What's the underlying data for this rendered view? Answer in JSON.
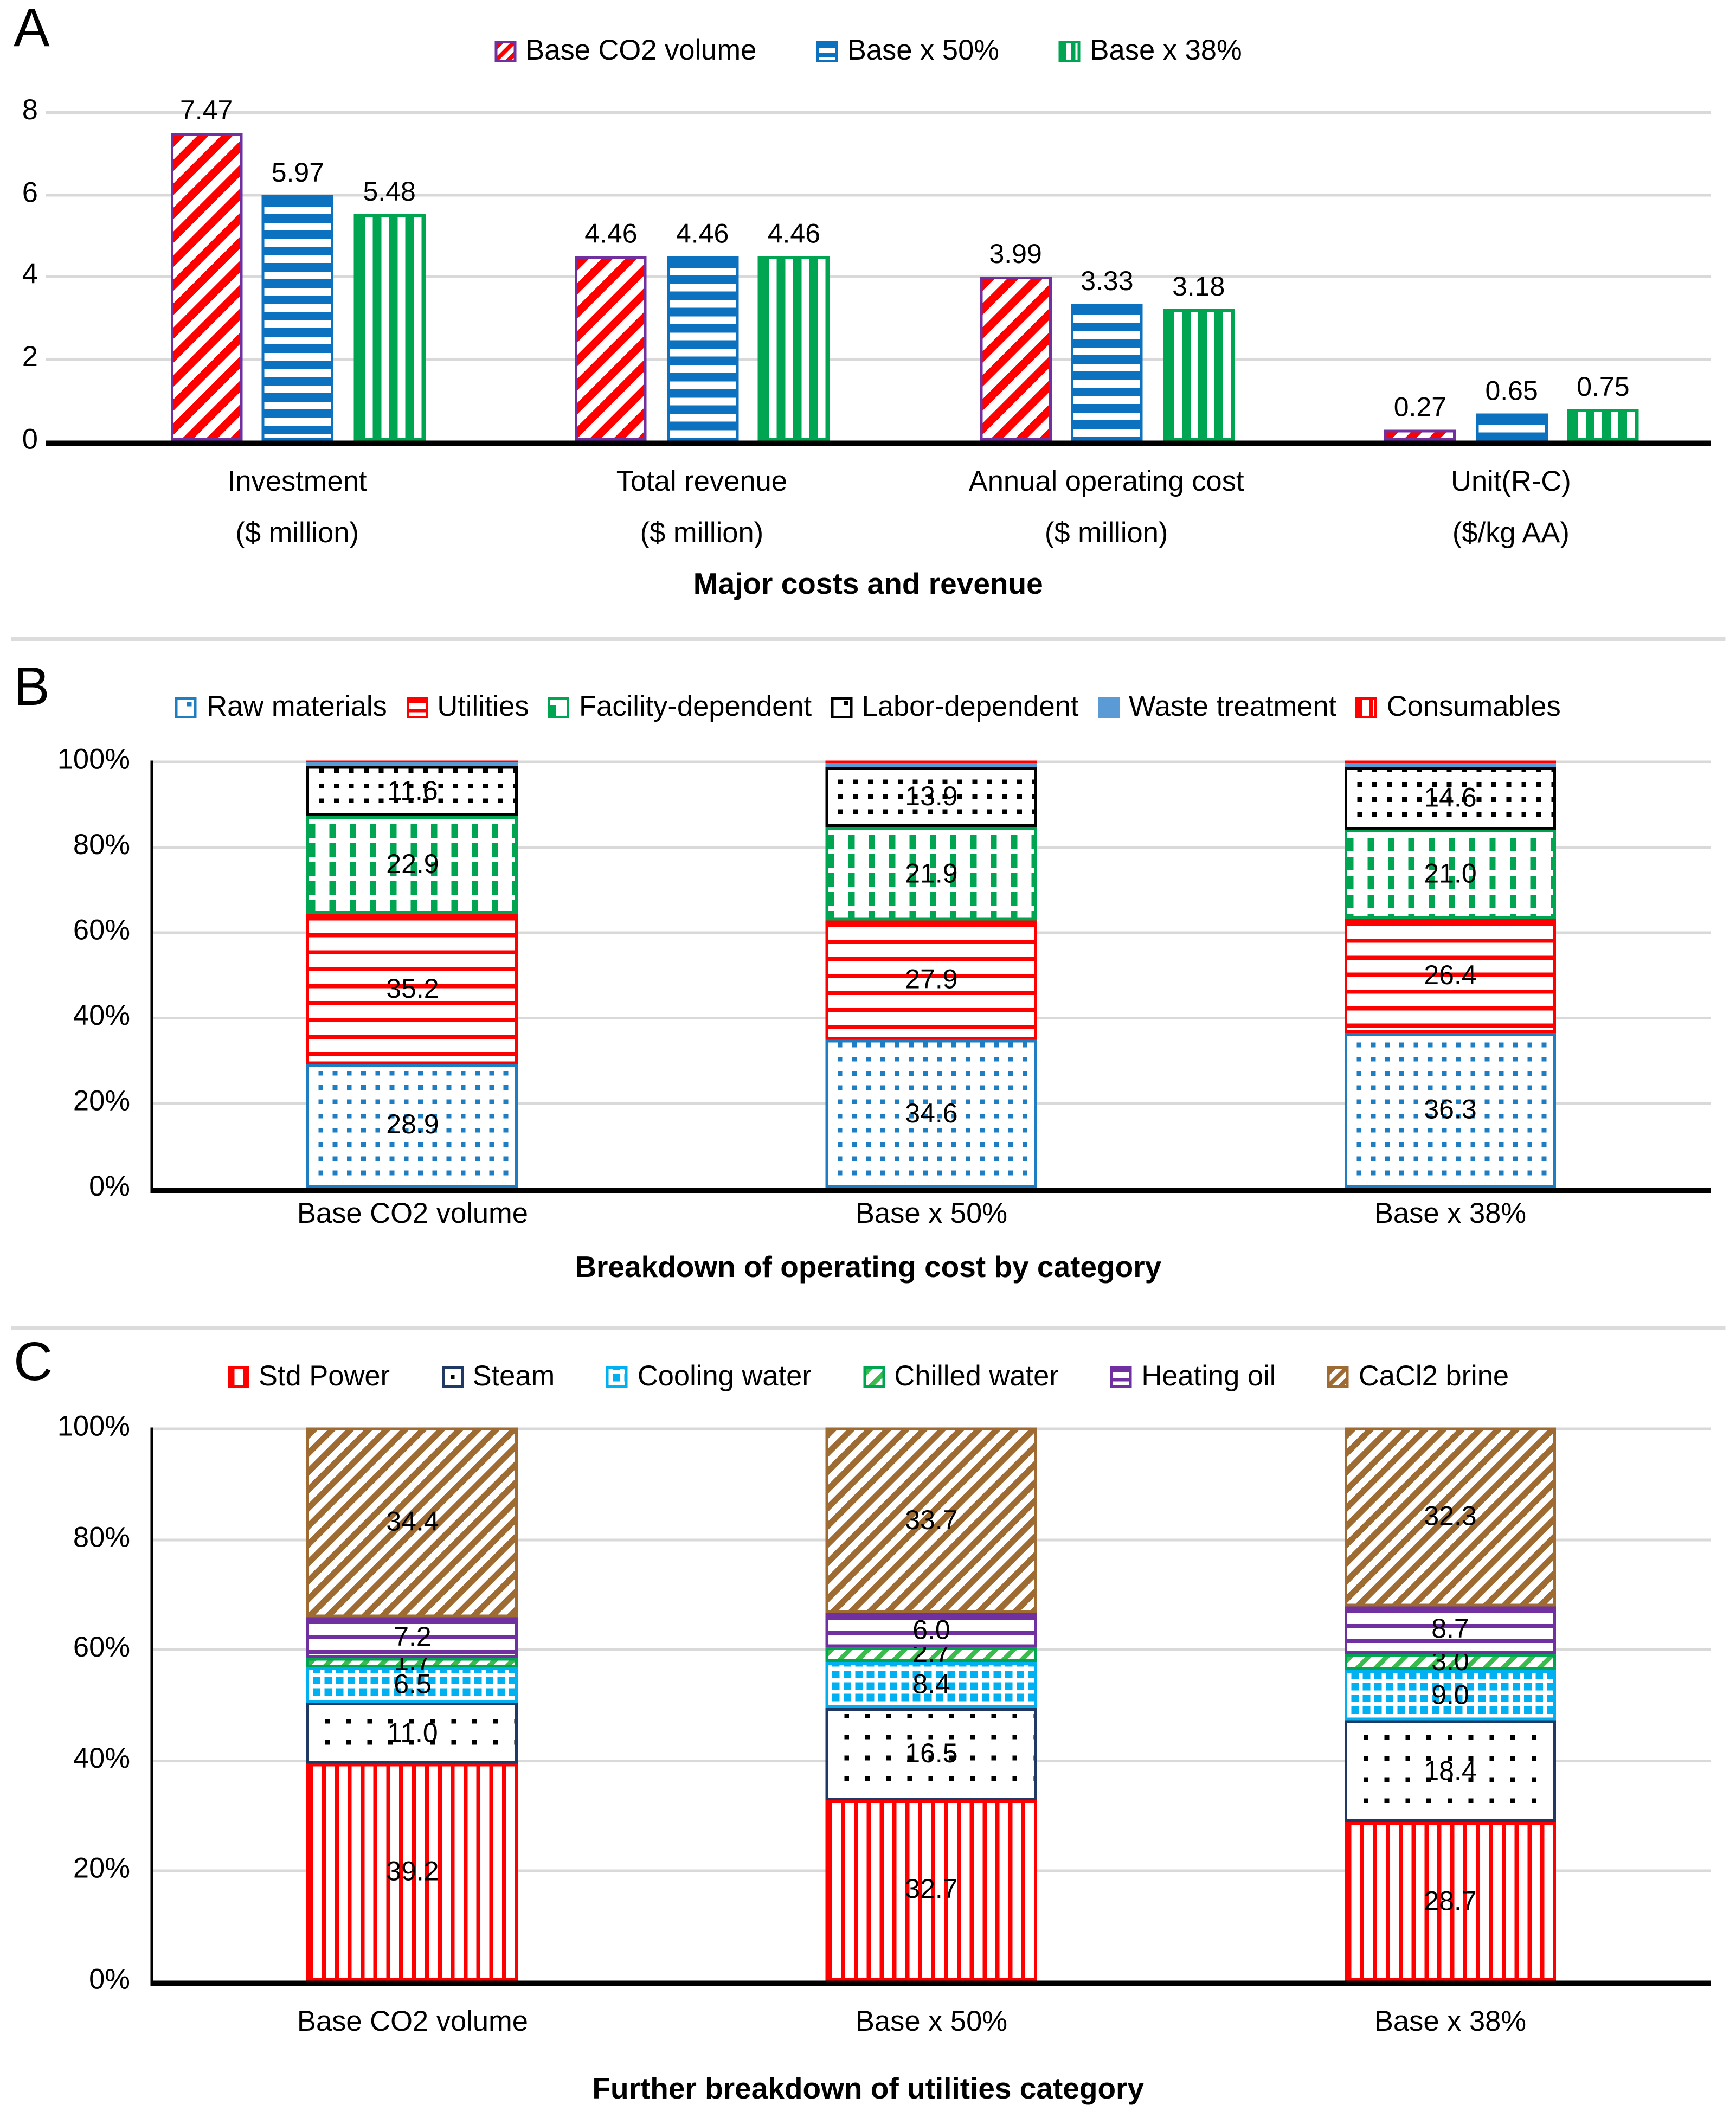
{
  "chart_data": [
    {
      "type": "bar",
      "panel_label": "A",
      "title": "Major costs and revenue",
      "legend_position": "top",
      "grid": true,
      "y_axis": {
        "ticks": [
          "0",
          "2",
          "4",
          "6",
          "8"
        ],
        "min": 0,
        "max": 8
      },
      "categories": [
        [
          "Investment",
          "($ million)"
        ],
        [
          "Total revenue",
          "($ million)"
        ],
        [
          "Annual operating cost",
          "($ million)"
        ],
        [
          "Unit(R-C)",
          "($/kg AA)"
        ]
      ],
      "series": [
        {
          "name": "Base CO2 volume",
          "pattern": "red-diagonal-stripes",
          "color": "#FF0000",
          "border_color": "#7030A0",
          "values": [
            7.47,
            4.46,
            3.99,
            0.27
          ],
          "labels": [
            "7.47",
            "4.46",
            "3.99",
            "0.27"
          ]
        },
        {
          "name": "Base x 50%",
          "pattern": "blue-horizontal-stripes",
          "color": "#0C71BE",
          "border_color": "#0C71BE",
          "values": [
            5.97,
            4.46,
            3.33,
            0.65
          ],
          "labels": [
            "5.97",
            "4.46",
            "3.33",
            "0.65"
          ]
        },
        {
          "name": "Base x 38%",
          "pattern": "green-vertical-stripes",
          "color": "#00A551",
          "border_color": "#00A551",
          "values": [
            5.48,
            4.46,
            3.18,
            0.75
          ],
          "labels": [
            "5.48",
            "4.46",
            "3.18",
            "0.75"
          ]
        }
      ]
    },
    {
      "type": "stacked-bar-100",
      "panel_label": "B",
      "title": "Breakdown of operating cost by category",
      "legend_position": "top",
      "grid": true,
      "y_axis": {
        "ticks": [
          "0%",
          "20%",
          "40%",
          "60%",
          "80%",
          "100%"
        ]
      },
      "categories": [
        "Base CO2 volume",
        "Base x 50%",
        "Base x 38%"
      ],
      "segments": [
        {
          "name": "Raw materials",
          "pattern": "blue-dots",
          "color": "#1F7EC2",
          "values": [
            28.9,
            34.6,
            36.3
          ],
          "labels": [
            "28.9",
            "34.6",
            "36.3"
          ]
        },
        {
          "name": "Utilities",
          "pattern": "red-horizontal-lines",
          "color": "#FF0000",
          "values": [
            35.2,
            27.9,
            26.4
          ],
          "labels": [
            "35.2",
            "27.9",
            "26.4"
          ]
        },
        {
          "name": "Facility-dependent",
          "pattern": "green-vertical-dashes",
          "color": "#00A551",
          "values": [
            22.9,
            21.9,
            21.0
          ],
          "labels": [
            "22.9",
            "21.9",
            "21.0"
          ]
        },
        {
          "name": "Labor-dependent",
          "pattern": "black-dots",
          "color": "#000000",
          "values": [
            11.6,
            13.9,
            14.6
          ],
          "labels": [
            "11.6",
            "13.9",
            "14.6"
          ]
        },
        {
          "name": "Waste treatment",
          "pattern": "solid-light-blue",
          "color": "#5B9BD5",
          "values": [
            1.0,
            1.2,
            1.2
          ],
          "labels": null
        },
        {
          "name": "Consumables",
          "pattern": "red-vertical-lines",
          "color": "#FF0000",
          "values": [
            0.4,
            0.5,
            0.5
          ],
          "labels": null
        }
      ]
    },
    {
      "type": "stacked-bar-100",
      "panel_label": "C",
      "title": "Further breakdown of utilities category",
      "legend_position": "top",
      "grid": true,
      "y_axis": {
        "ticks": [
          "0%",
          "20%",
          "40%",
          "60%",
          "80%",
          "100%"
        ]
      },
      "categories": [
        "Base CO2 volume",
        "Base x 50%",
        "Base x 38%"
      ],
      "segments": [
        {
          "name": "Std Power",
          "pattern": "red-vertical-stripes",
          "color": "#FF0000",
          "values": [
            39.2,
            32.7,
            28.7
          ],
          "labels": [
            "39.2",
            "32.7",
            "28.7"
          ]
        },
        {
          "name": "Steam",
          "pattern": "black-sparse-dots",
          "color": "#1F3864",
          "values": [
            11.0,
            16.5,
            18.4
          ],
          "labels": [
            "11.0",
            "16.5",
            "18.4"
          ]
        },
        {
          "name": "Cooling water",
          "pattern": "cyan-dots",
          "color": "#00B0F0",
          "values": [
            6.5,
            8.4,
            9.0
          ],
          "labels": [
            "6.5",
            "8.4",
            "9.0"
          ]
        },
        {
          "name": "Chilled water",
          "pattern": "green-diagonal-stripes",
          "color": "#3BBB4E",
          "values": [
            1.7,
            2.7,
            3.0
          ],
          "labels": [
            "1.7",
            "2.7",
            "3.0"
          ]
        },
        {
          "name": "Heating oil",
          "pattern": "purple-horizontal-lines",
          "color": "#7030A0",
          "values": [
            7.2,
            6.0,
            8.7
          ],
          "labels": [
            "7.2",
            "6.0",
            "8.7"
          ]
        },
        {
          "name": "CaCl2 brine",
          "pattern": "brown-diagonal-stripes",
          "color": "#9E6B32",
          "values": [
            34.4,
            33.7,
            32.3
          ],
          "labels": [
            "34.4",
            "33.7",
            "32.3"
          ]
        }
      ]
    }
  ]
}
